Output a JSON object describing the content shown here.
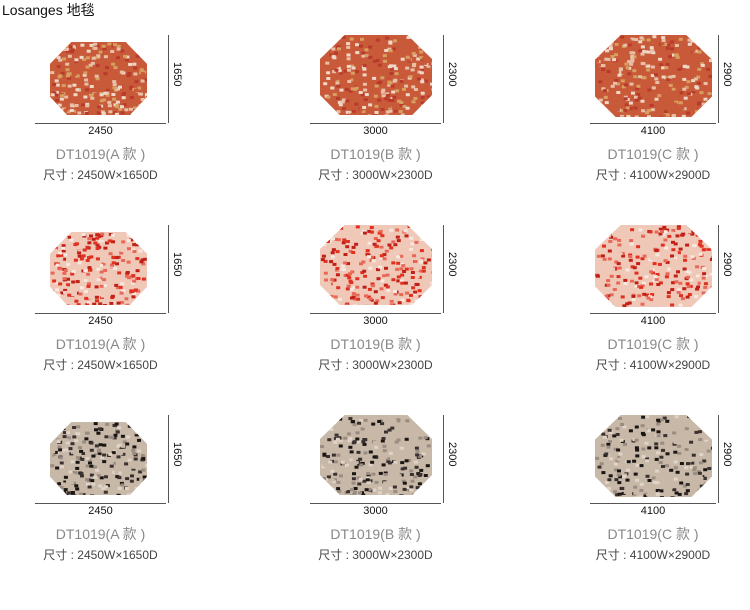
{
  "title": "Losanges 地毯",
  "colors": {
    "pink": [
      "#e8c0a8",
      "#c85a3a",
      "#f0d8c8",
      "#b83a2a",
      "#d8a060"
    ],
    "red": [
      "#e03020",
      "#f0c8b8",
      "#c02018",
      "#e86858",
      "#f8e8e0"
    ],
    "black": [
      "#1a1614",
      "#c8b8a8",
      "#3a3230",
      "#9a8c80",
      "#e0d4c8"
    ]
  },
  "rows": [
    {
      "color": "pink",
      "items": [
        {
          "width": "2450",
          "height": "1650",
          "model": "DT1019(A 款 )",
          "size": "尺寸 : 2450W×1650D"
        },
        {
          "width": "3000",
          "height": "2300",
          "model": "DT1019(B 款 )",
          "size": "尺寸 : 3000W×2300D"
        },
        {
          "width": "4100",
          "height": "2900",
          "model": "DT1019(C 款 )",
          "size": "尺寸 : 4100W×2900D"
        }
      ]
    },
    {
      "color": "red",
      "items": [
        {
          "width": "2450",
          "height": "1650",
          "model": "DT1019(A 款 )",
          "size": "尺寸 : 2450W×1650D"
        },
        {
          "width": "3000",
          "height": "2300",
          "model": "DT1019(B 款 )",
          "size": "尺寸 : 3000W×2300D"
        },
        {
          "width": "4100",
          "height": "2900",
          "model": "DT1019(C 款 )",
          "size": "尺寸 : 4100W×2900D"
        }
      ]
    },
    {
      "color": "black",
      "items": [
        {
          "width": "2450",
          "height": "1650",
          "model": "DT1019(A 款 )",
          "size": "尺寸 : 2450W×1650D"
        },
        {
          "width": "3000",
          "height": "2300",
          "model": "DT1019(B 款 )",
          "size": "尺寸 : 3000W×2300D"
        },
        {
          "width": "4100",
          "height": "2900",
          "model": "DT1019(C 款 )",
          "size": "尺寸 : 4100W×2900D"
        }
      ]
    }
  ]
}
